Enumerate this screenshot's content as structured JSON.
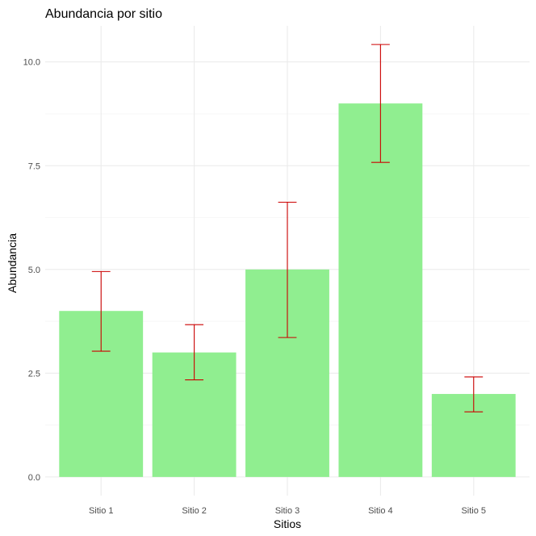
{
  "chart_data": {
    "type": "bar",
    "title": "Abundancia por sitio",
    "xlabel": "Sitios",
    "ylabel": "Abundancia",
    "categories": [
      "Sitio 1",
      "Sitio 2",
      "Sitio 3",
      "Sitio 4",
      "Sitio 5"
    ],
    "values": [
      4,
      3,
      5,
      9,
      2
    ],
    "error_bars": {
      "lower": [
        3.03,
        2.34,
        3.36,
        7.58,
        1.57
      ],
      "upper": [
        4.95,
        3.67,
        6.62,
        10.42,
        2.41
      ]
    },
    "ylim": [
      -0.45,
      10.87
    ],
    "y_ticks": [
      0.0,
      2.5,
      5.0,
      7.5,
      10.0
    ],
    "y_tick_labels": [
      "0.0",
      "2.5",
      "5.0",
      "7.5",
      "10.0"
    ],
    "grid": true,
    "legend": "none",
    "colors": {
      "bar": "#90EE90",
      "error_bar": "#CC0000",
      "grid_major": "#EBEBEB",
      "grid_minor": "#F4F4F4",
      "text": "#000000",
      "tick_text": "#4D4D4D"
    }
  }
}
